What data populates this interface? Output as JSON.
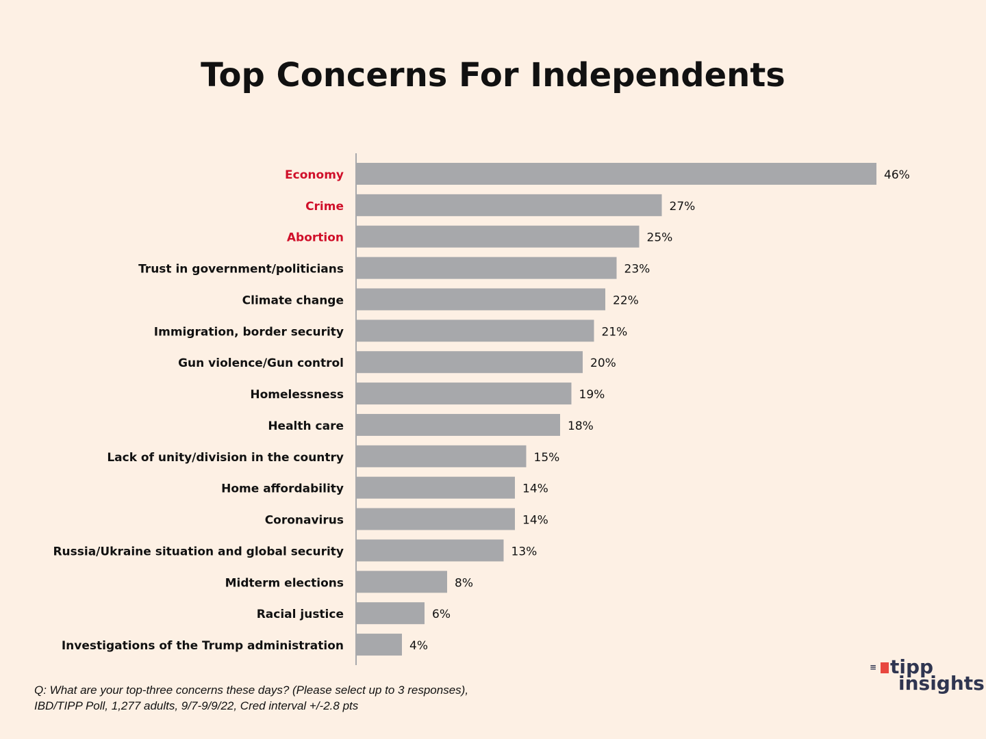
{
  "chart_data": {
    "type": "bar",
    "orientation": "horizontal",
    "title": "Top Concerns For Independents",
    "categories": [
      "Economy",
      "Crime",
      "Abortion",
      "Trust in government/politicians",
      "Climate change",
      "Immigration, border security",
      "Gun violence/Gun control",
      "Homelessness",
      "Health care",
      "Lack of unity/division in the country",
      "Home affordability",
      "Coronavirus",
      "Russia/Ukraine situation and global security",
      "Midterm elections",
      "Racial justice",
      "Investigations of the Trump administration"
    ],
    "values": [
      46,
      27,
      25,
      23,
      22,
      21,
      20,
      19,
      18,
      15,
      14,
      14,
      13,
      8,
      6,
      4
    ],
    "value_labels": [
      "46%",
      "27%",
      "25%",
      "23%",
      "22%",
      "21%",
      "20%",
      "19%",
      "18%",
      "15%",
      "14%",
      "14%",
      "13%",
      "8%",
      "6%",
      "4%"
    ],
    "highlighted": [
      "Economy",
      "Crime",
      "Abortion"
    ],
    "unit": "%",
    "xlim": [
      0,
      46
    ],
    "grid": false,
    "xlabel": "",
    "ylabel": ""
  },
  "footnote": {
    "line1": "Q: What are your top-three concerns these days? (Please select up to 3 responses),",
    "line2": "IBD/TIPP Poll, 1,277 adults, 9/7-9/9/22, Cred interval +/-2.8 pts"
  },
  "logo": {
    "line1": "tipp",
    "line2": "insights"
  },
  "colors": {
    "background": "#fdf0e4",
    "bar": "#a7a8ab",
    "highlight_label": "#d0102a",
    "label": "#111111",
    "axis": "#a7a8ab"
  }
}
